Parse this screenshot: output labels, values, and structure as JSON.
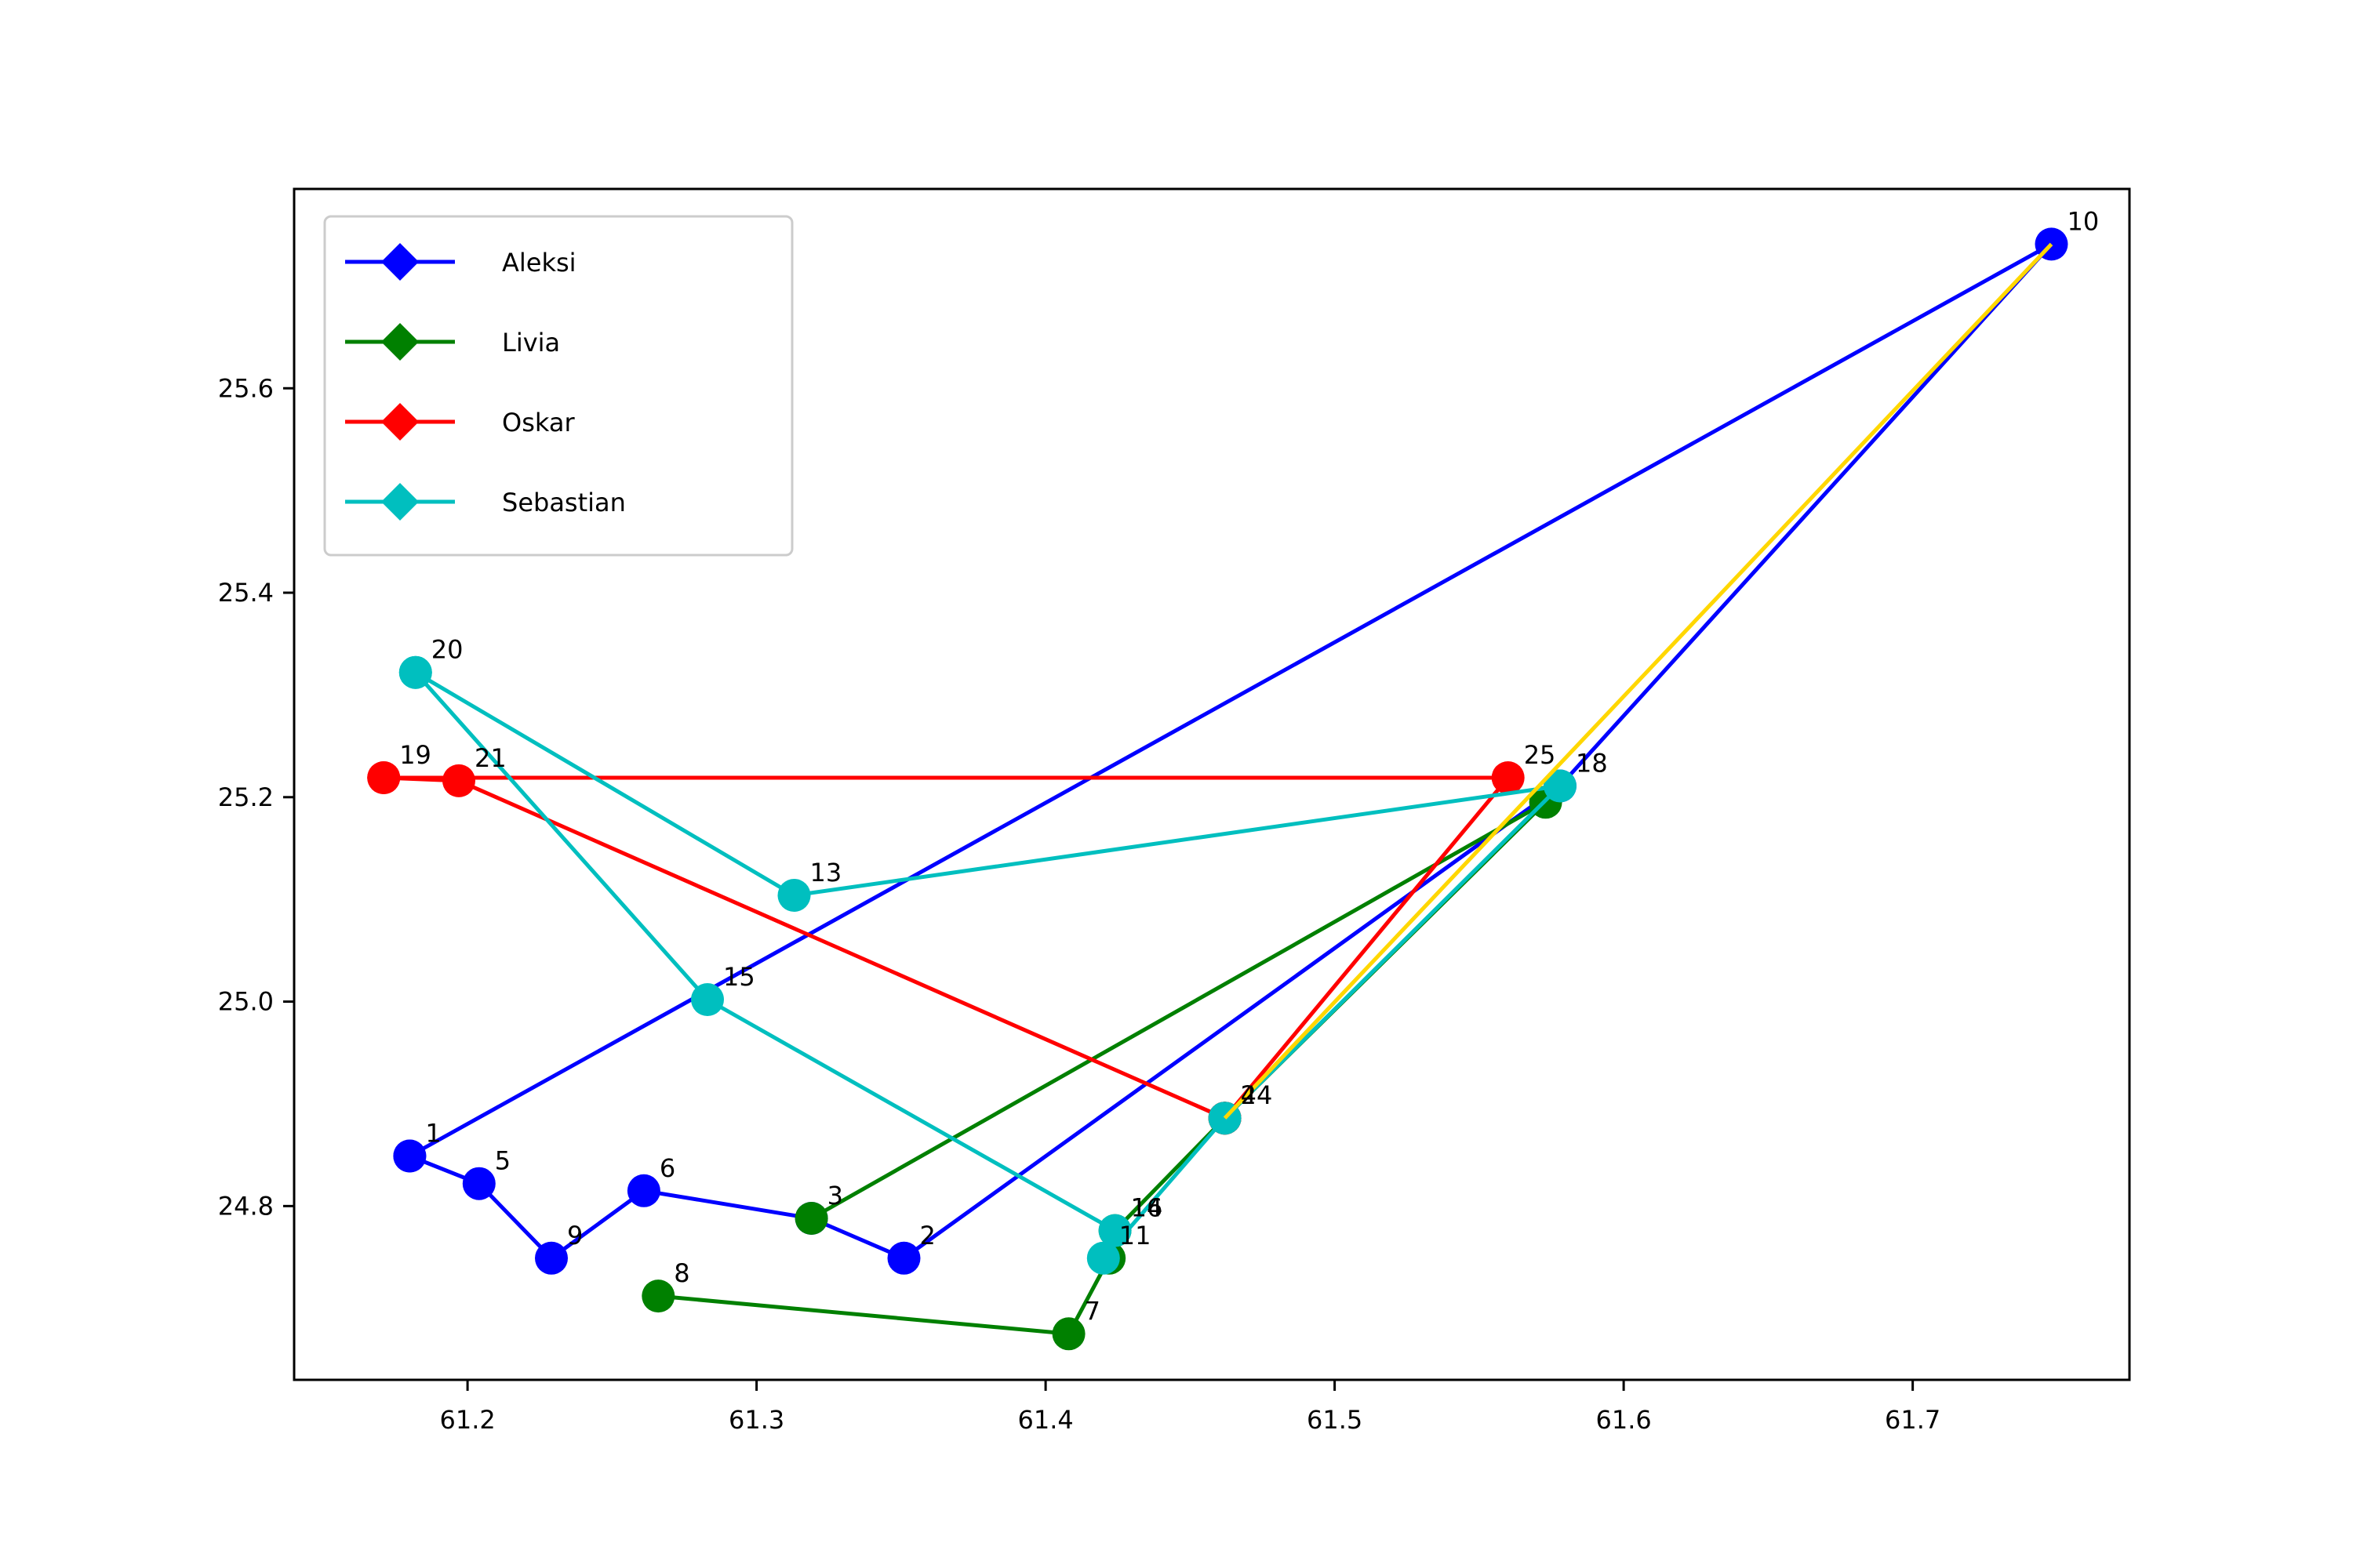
{
  "chart_data": {
    "type": "line",
    "title": "",
    "xlabel": "",
    "ylabel": "",
    "xlim": [
      61.14,
      61.775
    ],
    "ylim": [
      24.63,
      25.795
    ],
    "xticks": [
      61.2,
      61.3,
      61.4,
      61.5,
      61.6,
      61.7
    ],
    "xtick_labels": [
      "61.2",
      "61.3",
      "61.4",
      "61.5",
      "61.6",
      "61.7"
    ],
    "yticks": [
      24.8,
      25.0,
      25.2,
      25.4,
      25.6
    ],
    "ytick_labels": [
      "24.8",
      "25.0",
      "25.2",
      "25.4",
      "25.6"
    ],
    "grid": false,
    "legend": {
      "position": "top-left",
      "entries": [
        "Aleksi",
        "Livia",
        "Oskar",
        "Sebastian"
      ]
    },
    "series": [
      {
        "name": "Aleksi",
        "color": "#0000ff",
        "points": [
          {
            "label": "1",
            "x": 61.18,
            "y": 24.849
          },
          {
            "label": "5",
            "x": 61.204,
            "y": 24.822
          },
          {
            "label": "9",
            "x": 61.229,
            "y": 24.749
          },
          {
            "label": "6",
            "x": 61.261,
            "y": 24.815
          },
          {
            "label": "3",
            "x": 61.319,
            "y": 24.788
          },
          {
            "label": "2",
            "x": 61.351,
            "y": 24.749
          },
          {
            "label": "",
            "x": 61.578,
            "y": 25.211
          },
          {
            "label": "10",
            "x": 61.748,
            "y": 25.741
          },
          {
            "label": "",
            "x": 61.18,
            "y": 24.849
          }
        ]
      },
      {
        "name": "Livia",
        "color": "#008000",
        "points": [
          {
            "label": "8",
            "x": 61.266,
            "y": 24.712
          },
          {
            "label": "7",
            "x": 61.408,
            "y": 24.675
          },
          {
            "label": "",
            "x": 61.422,
            "y": 24.749
          },
          {
            "label": "16",
            "x": 61.424,
            "y": 24.776
          },
          {
            "label": "4",
            "x": 61.462,
            "y": 24.886
          },
          {
            "label": "",
            "x": 61.573,
            "y": 25.195
          },
          {
            "label": "",
            "x": 61.319,
            "y": 24.788
          }
        ]
      },
      {
        "name": "Oskar",
        "color": "#ff0000",
        "points": [
          {
            "label": "19",
            "x": 61.171,
            "y": 25.219
          },
          {
            "label": "21",
            "x": 61.197,
            "y": 25.216
          },
          {
            "label": "",
            "x": 61.462,
            "y": 24.886
          },
          {
            "label": "",
            "x": 61.462,
            "y": 24.886
          },
          {
            "label": "25",
            "x": 61.56,
            "y": 25.219
          },
          {
            "label": "",
            "x": 61.171,
            "y": 25.219
          }
        ]
      },
      {
        "name": "Sebastian",
        "color": "#00bfbf",
        "points": [
          {
            "label": "20",
            "x": 61.182,
            "y": 25.322
          },
          {
            "label": "15",
            "x": 61.283,
            "y": 25.002
          },
          {
            "label": "14",
            "x": 61.424,
            "y": 24.776
          },
          {
            "label": "11",
            "x": 61.42,
            "y": 24.749
          },
          {
            "label": "24",
            "x": 61.462,
            "y": 24.886
          },
          {
            "label": "18",
            "x": 61.578,
            "y": 25.211
          },
          {
            "label": "13",
            "x": 61.313,
            "y": 25.104
          },
          {
            "label": "",
            "x": 61.182,
            "y": 25.322
          }
        ]
      }
    ],
    "extra_line": {
      "color": "#ffd700",
      "points": [
        {
          "x": 61.462,
          "y": 24.886
        },
        {
          "x": 61.748,
          "y": 25.741
        }
      ]
    }
  }
}
